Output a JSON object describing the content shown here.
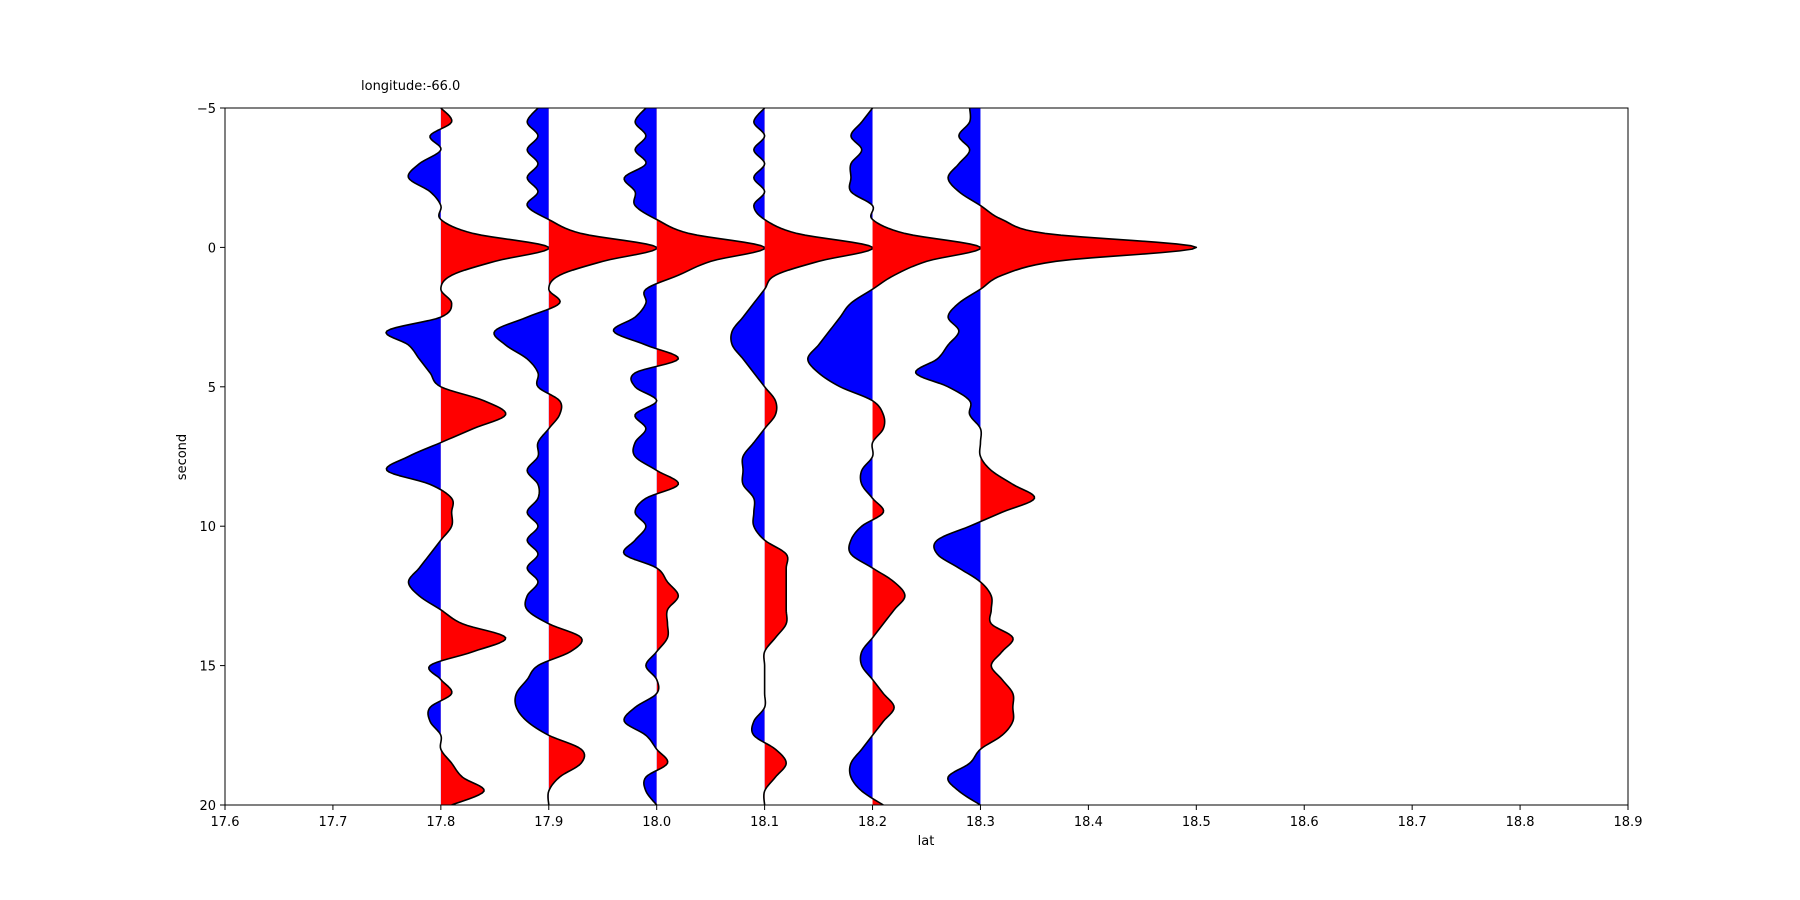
{
  "chart_data": {
    "type": "line",
    "plot_style": "seismic wiggle traces with variable-area fill",
    "title": "longitude:-66.0",
    "xlabel": "lat",
    "ylabel": "second",
    "xlim": [
      17.6,
      18.9
    ],
    "ylim": [
      20,
      -5
    ],
    "y_inverted": true,
    "x_ticks": [
      "17.6",
      "17.7",
      "17.8",
      "17.9",
      "18.0",
      "18.1",
      "18.2",
      "18.3",
      "18.4",
      "18.5",
      "18.6",
      "18.7",
      "18.8",
      "18.9"
    ],
    "y_ticks": [
      "−5",
      "0",
      "5",
      "10",
      "15",
      "20"
    ],
    "grid": false,
    "legend": null,
    "colors": {
      "positive_fill": "#ff0000",
      "negative_fill": "#0000ff",
      "line": "#000000"
    },
    "series": [
      {
        "baseline": 17.8,
        "t": [
          -5,
          -4.5,
          -4,
          -3.5,
          -3,
          -2.5,
          -2,
          -1.5,
          -1,
          -0.5,
          0,
          0.5,
          1,
          1.5,
          2,
          2.5,
          3,
          3.5,
          4,
          4.5,
          5,
          5.5,
          6,
          6.5,
          7,
          7.5,
          8,
          8.5,
          9,
          9.5,
          10,
          10.5,
          11,
          11.5,
          12,
          12.5,
          13,
          13.5,
          14,
          14.5,
          15,
          15.5,
          16,
          16.5,
          17,
          17.5,
          18,
          18.5,
          19,
          19.5,
          20
        ],
        "x": [
          17.8,
          17.81,
          17.79,
          17.8,
          17.78,
          17.77,
          17.79,
          17.8,
          17.8,
          17.83,
          17.9,
          17.85,
          17.81,
          17.8,
          17.81,
          17.8,
          17.75,
          17.77,
          17.78,
          17.79,
          17.8,
          17.84,
          17.86,
          17.83,
          17.8,
          17.77,
          17.75,
          17.79,
          17.81,
          17.81,
          17.81,
          17.8,
          17.79,
          17.78,
          17.77,
          17.78,
          17.8,
          17.82,
          17.86,
          17.83,
          17.79,
          17.8,
          17.81,
          17.79,
          17.79,
          17.8,
          17.8,
          17.81,
          17.82,
          17.84,
          17.81
        ]
      },
      {
        "baseline": 17.9,
        "t": [
          -5,
          -4.5,
          -4,
          -3.5,
          -3,
          -2.5,
          -2,
          -1.5,
          -1,
          -0.5,
          0,
          0.5,
          1,
          1.5,
          2,
          2.5,
          3,
          3.5,
          4,
          4.5,
          5,
          5.5,
          6,
          6.5,
          7,
          7.5,
          8,
          8.5,
          9,
          9.5,
          10,
          10.5,
          11,
          11.5,
          12,
          12.5,
          13,
          13.5,
          14,
          14.5,
          15,
          15.5,
          16,
          16.5,
          17,
          17.5,
          18,
          18.5,
          19,
          19.5,
          20
        ],
        "x": [
          17.89,
          17.88,
          17.89,
          17.88,
          17.89,
          17.88,
          17.89,
          17.88,
          17.9,
          17.93,
          18.0,
          17.95,
          17.91,
          17.9,
          17.91,
          17.88,
          17.85,
          17.86,
          17.88,
          17.89,
          17.89,
          17.91,
          17.91,
          17.9,
          17.89,
          17.89,
          17.88,
          17.89,
          17.89,
          17.88,
          17.89,
          17.88,
          17.89,
          17.88,
          17.89,
          17.88,
          17.88,
          17.9,
          17.93,
          17.92,
          17.89,
          17.88,
          17.87,
          17.87,
          17.88,
          17.9,
          17.93,
          17.93,
          17.91,
          17.9,
          17.9
        ]
      },
      {
        "baseline": 18.0,
        "t": [
          -5,
          -4.5,
          -4,
          -3.5,
          -3,
          -2.5,
          -2,
          -1.5,
          -1,
          -0.5,
          0,
          0.5,
          1,
          1.5,
          2,
          2.5,
          3,
          3.5,
          4,
          4.5,
          5,
          5.5,
          6,
          6.5,
          7,
          7.5,
          8,
          8.5,
          9,
          9.5,
          10,
          10.5,
          11,
          11.5,
          12,
          12.5,
          13,
          13.5,
          14,
          14.5,
          15,
          15.5,
          16,
          16.5,
          17,
          17.5,
          18,
          18.5,
          19,
          19.5,
          20
        ],
        "x": [
          17.99,
          17.98,
          17.99,
          17.98,
          17.99,
          17.97,
          17.98,
          17.98,
          18.0,
          18.03,
          18.1,
          18.05,
          18.02,
          17.99,
          17.99,
          17.98,
          17.96,
          17.99,
          18.02,
          17.98,
          17.98,
          18.0,
          17.98,
          17.99,
          17.98,
          17.98,
          18.0,
          18.02,
          17.99,
          17.98,
          17.99,
          17.98,
          17.97,
          18.0,
          18.01,
          18.02,
          18.01,
          18.01,
          18.01,
          18.0,
          17.99,
          18.0,
          18.0,
          17.98,
          17.97,
          17.99,
          18.0,
          18.01,
          17.99,
          17.99,
          18.0
        ]
      },
      {
        "baseline": 18.1,
        "t": [
          -5,
          -4.5,
          -4,
          -3.5,
          -3,
          -2.5,
          -2,
          -1.5,
          -1,
          -0.5,
          0,
          0.5,
          1,
          1.5,
          2,
          2.5,
          3,
          3.5,
          4,
          4.5,
          5,
          5.5,
          6,
          6.5,
          7,
          7.5,
          8,
          8.5,
          9,
          9.5,
          10,
          10.5,
          11,
          11.5,
          12,
          12.5,
          13,
          13.5,
          14,
          14.5,
          15,
          15.5,
          16,
          16.5,
          17,
          17.5,
          18,
          18.5,
          19,
          19.5,
          20
        ],
        "x": [
          18.1,
          18.09,
          18.1,
          18.09,
          18.1,
          18.09,
          18.1,
          18.09,
          18.1,
          18.13,
          18.2,
          18.15,
          18.11,
          18.1,
          18.09,
          18.08,
          18.07,
          18.07,
          18.08,
          18.09,
          18.1,
          18.11,
          18.11,
          18.1,
          18.09,
          18.08,
          18.08,
          18.08,
          18.09,
          18.09,
          18.09,
          18.1,
          18.12,
          18.12,
          18.12,
          18.12,
          18.12,
          18.12,
          18.11,
          18.1,
          18.1,
          18.1,
          18.1,
          18.1,
          18.09,
          18.09,
          18.11,
          18.12,
          18.11,
          18.1,
          18.1
        ]
      },
      {
        "baseline": 18.2,
        "t": [
          -5,
          -4.5,
          -4,
          -3.5,
          -3,
          -2.5,
          -2,
          -1.5,
          -1,
          -0.5,
          0,
          0.5,
          1,
          1.5,
          2,
          2.5,
          3,
          3.5,
          4,
          4.5,
          5,
          5.5,
          6,
          6.5,
          7,
          7.5,
          8,
          8.5,
          9,
          9.5,
          10,
          10.5,
          11,
          11.5,
          12,
          12.5,
          13,
          13.5,
          14,
          14.5,
          15,
          15.5,
          16,
          16.5,
          17,
          17.5,
          18,
          18.5,
          19,
          19.5,
          20
        ],
        "x": [
          18.2,
          18.19,
          18.18,
          18.19,
          18.18,
          18.18,
          18.18,
          18.2,
          18.2,
          18.23,
          18.3,
          18.25,
          18.22,
          18.2,
          18.18,
          18.17,
          18.16,
          18.15,
          18.14,
          18.15,
          18.17,
          18.2,
          18.21,
          18.21,
          18.2,
          18.2,
          18.19,
          18.19,
          18.2,
          18.21,
          18.19,
          18.18,
          18.18,
          18.2,
          18.22,
          18.23,
          18.22,
          18.21,
          18.2,
          18.19,
          18.19,
          18.2,
          18.21,
          18.22,
          18.21,
          18.2,
          18.19,
          18.18,
          18.18,
          18.19,
          18.21
        ]
      },
      {
        "baseline": 18.3,
        "t": [
          -5,
          -4.5,
          -4,
          -3.5,
          -3,
          -2.5,
          -2,
          -1.5,
          -1,
          -0.5,
          0,
          0.5,
          1,
          1.5,
          2,
          2.5,
          3,
          3.5,
          4,
          4.5,
          5,
          5.5,
          6,
          6.5,
          7,
          7.5,
          8,
          8.5,
          9,
          9.5,
          10,
          10.5,
          11,
          11.5,
          12,
          12.5,
          13,
          13.5,
          14,
          14.5,
          15,
          15.5,
          16,
          16.5,
          17,
          17.5,
          18,
          18.5,
          19,
          19.5,
          20
        ],
        "x": [
          18.29,
          18.29,
          18.28,
          18.29,
          18.28,
          18.27,
          18.28,
          18.3,
          18.32,
          18.36,
          18.5,
          18.37,
          18.32,
          18.3,
          18.28,
          18.27,
          18.28,
          18.27,
          18.26,
          18.24,
          18.27,
          18.29,
          18.29,
          18.3,
          18.3,
          18.3,
          18.31,
          18.33,
          18.35,
          18.32,
          18.29,
          18.26,
          18.26,
          18.28,
          18.3,
          18.31,
          18.31,
          18.31,
          18.33,
          18.32,
          18.31,
          18.32,
          18.33,
          18.33,
          18.33,
          18.32,
          18.3,
          18.29,
          18.27,
          18.28,
          18.3
        ]
      }
    ]
  }
}
